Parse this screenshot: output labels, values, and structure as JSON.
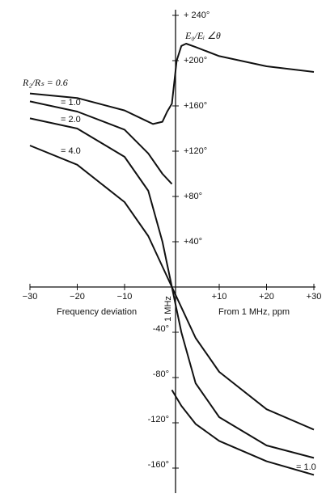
{
  "chart_data": {
    "type": "line",
    "y_label": "E₀/Eᵢ ∠θ",
    "x_label_left": "Frequency deviation",
    "x_label_right": "From 1 MHz, ppm",
    "center_label": "1 MHz",
    "xlim": [
      -30,
      30
    ],
    "ylim": [
      -180,
      240
    ],
    "xticks": [
      {
        "value": -30,
        "label": "−30"
      },
      {
        "value": -20,
        "label": "−20"
      },
      {
        "value": -10,
        "label": "−10"
      },
      {
        "value": 10,
        "label": "+10"
      },
      {
        "value": 20,
        "label": "+20"
      },
      {
        "value": 30,
        "label": "+30"
      }
    ],
    "yticks": [
      {
        "value": 240,
        "label": "+ 240°"
      },
      {
        "value": 200,
        "label": "+200°"
      },
      {
        "value": 160,
        "label": "+160°"
      },
      {
        "value": 120,
        "label": "+120°"
      },
      {
        "value": 80,
        "label": "+80°"
      },
      {
        "value": 40,
        "label": "+40°"
      },
      {
        "value": -40,
        "label": "-40°"
      },
      {
        "value": -80,
        "label": "-80°"
      },
      {
        "value": -120,
        "label": "-120°"
      },
      {
        "value": -160,
        "label": "-160°"
      }
    ],
    "series": [
      {
        "name": "R₂/Rₛ = 0.6",
        "color": "#111111",
        "x": [
          -30,
          -20,
          -10,
          -6,
          -4,
          -2,
          -1,
          0,
          1,
          2,
          3,
          5,
          10,
          20,
          30
        ],
        "values": [
          171,
          167,
          156,
          148,
          144,
          146,
          155,
          162,
          200,
          213,
          215,
          212,
          204,
          195,
          190
        ]
      },
      {
        "name": "= 1.0",
        "color": "#111111",
        "x": [
          -30,
          -20,
          -10,
          -5,
          -2,
          0
        ],
        "values": [
          164,
          155,
          139,
          118,
          100,
          91
        ]
      },
      {
        "name": "= 2.0",
        "color": "#111111",
        "x": [
          -30,
          -20,
          -10,
          -5,
          -2,
          0,
          2,
          5,
          10,
          20,
          30
        ],
        "values": [
          149,
          140,
          115,
          85,
          40,
          0,
          -40,
          -85,
          -115,
          -140,
          -151
        ]
      },
      {
        "name": "= 4.0",
        "color": "#111111",
        "x": [
          -30,
          -20,
          -10,
          -5,
          0,
          5,
          10,
          20,
          30
        ],
        "values": [
          125,
          108,
          75,
          45,
          0,
          -45,
          -75,
          -108,
          -126
        ]
      },
      {
        "name": "= 1.0",
        "color": "#111111",
        "x": [
          0,
          2,
          5,
          10,
          20,
          30
        ],
        "values": [
          -91,
          -105,
          -121,
          -136,
          -154,
          -166
        ]
      }
    ]
  }
}
